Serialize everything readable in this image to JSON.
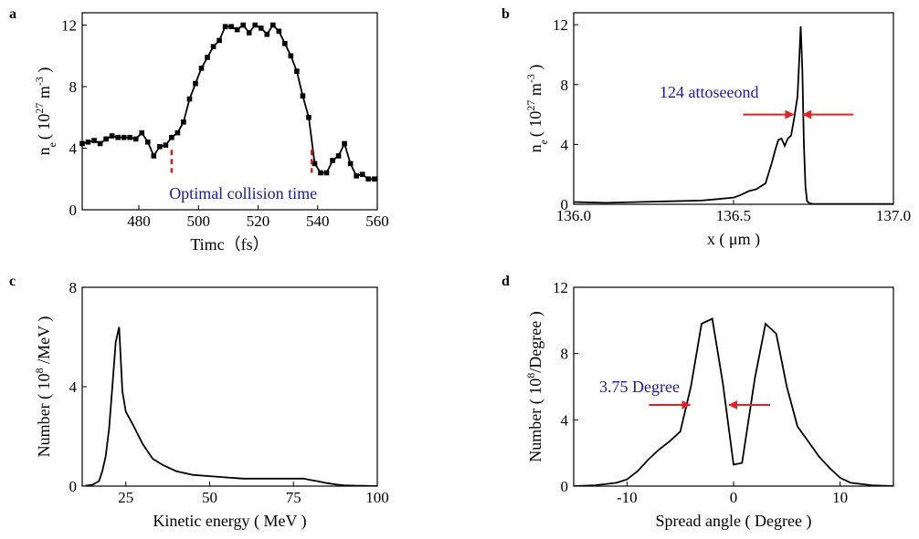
{
  "chart_data": [
    {
      "panel": "a",
      "type": "line",
      "markers": true,
      "xlabel": "Timc（fs）",
      "ylabel_main": "n",
      "ylabel_sub": "e",
      "ylabel_rest": "( 10",
      "ylabel_exp1": "27",
      "ylabel_unit": " m",
      "ylabel_exp2": "-3",
      "ylabel_close": " )",
      "xlim": [
        461,
        560
      ],
      "ylim": [
        0,
        12.8
      ],
      "xticks": [
        480,
        500,
        520,
        540,
        560
      ],
      "yticks": [
        0,
        4,
        8,
        12
      ],
      "series": [
        {
          "x": [
            461,
            463,
            465,
            467,
            469,
            471,
            473,
            475,
            477,
            479,
            481,
            483,
            485,
            487,
            489,
            491,
            493,
            495,
            497,
            499,
            501,
            503,
            505,
            507,
            509,
            511,
            513,
            515,
            517,
            519,
            521,
            523,
            525,
            527,
            529,
            531,
            533,
            535,
            537,
            539,
            541,
            543,
            545,
            547,
            549,
            551,
            553,
            555,
            557,
            559
          ],
          "values": [
            4.3,
            4.4,
            4.5,
            4.3,
            4.6,
            4.8,
            4.7,
            4.7,
            4.7,
            4.6,
            5.0,
            4.4,
            3.5,
            4.1,
            4.2,
            4.7,
            5.0,
            5.7,
            7.2,
            8.2,
            9.2,
            9.9,
            10.6,
            11.0,
            11.9,
            11.9,
            11.7,
            12.0,
            11.5,
            12.0,
            11.8,
            11.4,
            12.0,
            11.6,
            10.8,
            10.0,
            9.0,
            7.4,
            6.0,
            3.0,
            2.4,
            2.4,
            3.2,
            3.5,
            4.3,
            3.0,
            2.2,
            2.3,
            2.0,
            2.0
          ]
        }
      ],
      "marker_lines_x": [
        491,
        538
      ],
      "annotation": "Optimal collision time",
      "color_markers": "#cc2222",
      "color_annotation": "#1a1aa8"
    },
    {
      "panel": "b",
      "type": "line",
      "xlabel": "x ( μm )",
      "ylabel_main": "n",
      "ylabel_sub": "e",
      "ylabel_rest": "( 10",
      "ylabel_exp1": "27",
      "ylabel_unit": " m",
      "ylabel_exp2": "-3",
      "ylabel_close": " )",
      "xlim": [
        136.0,
        137.0
      ],
      "ylim": [
        0,
        12.8
      ],
      "xticks": [
        "136.0",
        "136.5",
        "137.0"
      ],
      "xtick_values": [
        136.0,
        136.5,
        137.0
      ],
      "yticks": [
        0,
        4,
        8,
        12
      ],
      "series": [
        {
          "x": [
            136.0,
            136.1,
            136.2,
            136.3,
            136.4,
            136.45,
            136.5,
            136.52,
            136.55,
            136.57,
            136.6,
            136.62,
            136.63,
            136.64,
            136.65,
            136.66,
            136.67,
            136.68,
            136.69,
            136.7,
            136.705,
            136.71,
            136.715,
            136.72,
            136.725,
            136.73,
            136.74,
            136.75,
            136.8,
            136.9,
            137.0
          ],
          "values": [
            0.15,
            0.1,
            0.15,
            0.2,
            0.25,
            0.35,
            0.45,
            0.6,
            0.9,
            1.0,
            1.4,
            2.8,
            3.6,
            4.3,
            4.4,
            3.9,
            4.4,
            4.6,
            5.8,
            7.2,
            9.5,
            11.9,
            9.0,
            4.0,
            1.2,
            0.2,
            0.05,
            0.02,
            0.02,
            0.02,
            0.02
          ]
        }
      ],
      "annotation": "124 attoseeond",
      "fwhm_arrows_x": [
        136.69,
        136.715
      ],
      "fwhm_arrows_y": 6.0,
      "color_arrows": "#e62020",
      "color_annotation": "#1a1aa8"
    },
    {
      "panel": "c",
      "type": "line",
      "xlabel": "Kinetic energy ( MeV )",
      "ylabel_main": "Number ( 10",
      "ylabel_exp1": "8",
      "ylabel_rest": " /MeV )",
      "xlim": [
        12,
        100
      ],
      "ylim": [
        0,
        8
      ],
      "xticks": [
        25,
        50,
        75,
        100
      ],
      "yticks": [
        0,
        4,
        8
      ],
      "series": [
        {
          "x": [
            13,
            15,
            17,
            18,
            19,
            20,
            21,
            22,
            23,
            24,
            25,
            27,
            30,
            33,
            36,
            40,
            45,
            50,
            55,
            60,
            65,
            70,
            75,
            78,
            80,
            82,
            85,
            88,
            90,
            93,
            96,
            100
          ],
          "values": [
            0.02,
            0.05,
            0.2,
            0.6,
            1.2,
            2.3,
            4.0,
            5.8,
            6.4,
            3.8,
            3.0,
            2.5,
            1.7,
            1.1,
            0.85,
            0.6,
            0.45,
            0.4,
            0.35,
            0.3,
            0.3,
            0.3,
            0.3,
            0.3,
            0.25,
            0.2,
            0.12,
            0.06,
            0.03,
            0.02,
            0.01,
            0.0
          ]
        }
      ]
    },
    {
      "panel": "d",
      "type": "line",
      "xlabel": "Spread angle ( Degree )",
      "ylabel_main": "Number ( 10",
      "ylabel_exp1": "8",
      "ylabel_rest": "/Degree )",
      "xlim": [
        -15,
        15
      ],
      "ylim": [
        0,
        12
      ],
      "xticks": [
        -10,
        0,
        10
      ],
      "yticks": [
        0,
        4,
        8,
        12
      ],
      "series": [
        {
          "x": [
            -15,
            -13,
            -11,
            -10,
            -9,
            -8,
            -7,
            -6,
            -5,
            -4,
            -3,
            -2,
            -1,
            0,
            0.8,
            2,
            3,
            4,
            5,
            6,
            7,
            8,
            9,
            10,
            11,
            13,
            15
          ],
          "values": [
            0.0,
            0.05,
            0.2,
            0.4,
            0.9,
            1.6,
            2.2,
            2.7,
            3.3,
            6.0,
            9.8,
            10.1,
            6.2,
            1.3,
            1.4,
            6.5,
            9.8,
            9.2,
            6.0,
            3.6,
            2.7,
            1.8,
            1.1,
            0.5,
            0.2,
            0.05,
            0.0
          ]
        }
      ],
      "annotation": "3.75 Degree",
      "fwhm_arrows_x": [
        -4.0,
        -0.5
      ],
      "fwhm_arrows_y": 4.9,
      "color_arrows": "#e62020",
      "color_annotation": "#1a1aa8"
    }
  ]
}
